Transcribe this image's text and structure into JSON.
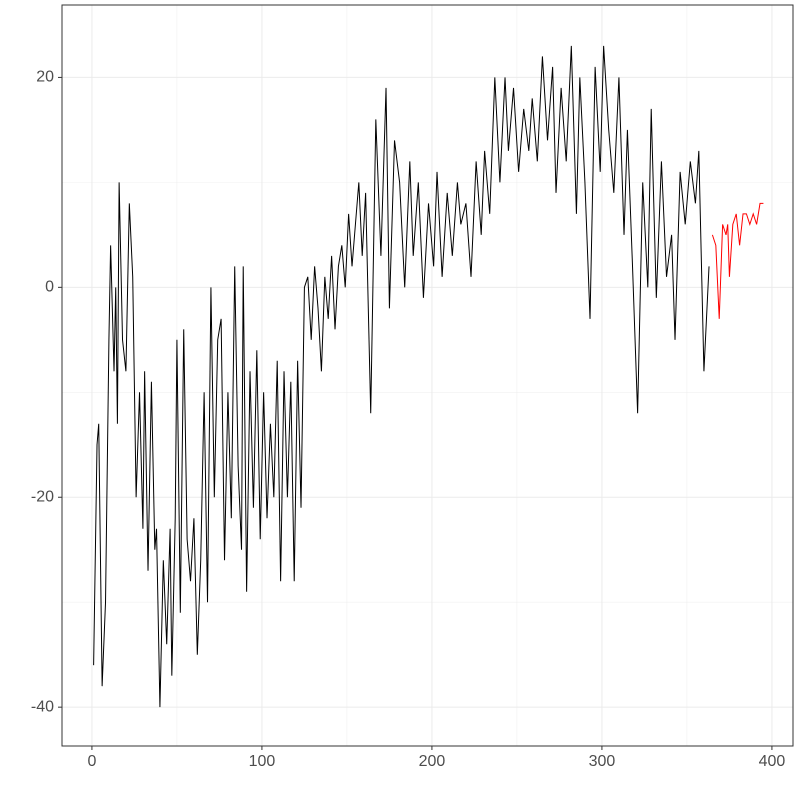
{
  "chart_data": {
    "type": "line",
    "xlim": [
      -17.6,
      412.4
    ],
    "ylim": [
      -43.7,
      26.9
    ],
    "xticks": [
      0,
      100,
      200,
      300,
      400
    ],
    "yticks": [
      -40,
      -20,
      0,
      20
    ],
    "x_minor_ticks": [
      50,
      150,
      250,
      350
    ],
    "y_minor_ticks": [
      -30,
      -10,
      10
    ],
    "grid": true,
    "series": [
      {
        "color": "#000000",
        "x": [
          1,
          3,
          4,
          6,
          8,
          10,
          11,
          13,
          14,
          15,
          16,
          18,
          20,
          22,
          24,
          26,
          28,
          30,
          31,
          33,
          35,
          37,
          38,
          40,
          42,
          44,
          46,
          47,
          49,
          50,
          52,
          54,
          56,
          58,
          60,
          62,
          64,
          66,
          68,
          70,
          72,
          74,
          76,
          78,
          80,
          82,
          84,
          86,
          88,
          89,
          91,
          93,
          95,
          97,
          99,
          101,
          103,
          105,
          107,
          109,
          111,
          113,
          115,
          117,
          119,
          121,
          123,
          125,
          127,
          129,
          131,
          133,
          135,
          137,
          139,
          141,
          143,
          145,
          147,
          149,
          151,
          153,
          155,
          157,
          159,
          161,
          164,
          167,
          170,
          173,
          175,
          178,
          181,
          184,
          187,
          189,
          192,
          195,
          198,
          201,
          203,
          206,
          209,
          212,
          215,
          217,
          220,
          223,
          226,
          229,
          231,
          234,
          237,
          240,
          243,
          245,
          248,
          251,
          254,
          257,
          259,
          262,
          265,
          268,
          271,
          273,
          276,
          279,
          282,
          285,
          287,
          290,
          293,
          296,
          299,
          301,
          304,
          307,
          310,
          313,
          315,
          318,
          321,
          324,
          327,
          329,
          332,
          335,
          338,
          341,
          343,
          346,
          349,
          352,
          355,
          357,
          360,
          363
        ],
        "values": [
          -36,
          -15,
          -13,
          -38,
          -30,
          -5,
          4,
          -8,
          0,
          -13,
          10,
          -5,
          -8,
          8,
          1,
          -20,
          -10,
          -23,
          -8,
          -27,
          -9,
          -25,
          -23,
          -40,
          -26,
          -34,
          -23,
          -37,
          -22,
          -5,
          -31,
          -4,
          -24,
          -28,
          -22,
          -35,
          -26,
          -10,
          -30,
          0,
          -20,
          -5,
          -3,
          -26,
          -10,
          -22,
          2,
          -17,
          -25,
          2,
          -29,
          -8,
          -21,
          -6,
          -24,
          -10,
          -22,
          -13,
          -20,
          -7,
          -28,
          -8,
          -20,
          -9,
          -28,
          -7,
          -21,
          0,
          1,
          -5,
          2,
          -2,
          -8,
          1,
          -3,
          3,
          -4,
          2,
          4,
          0,
          7,
          2,
          6,
          10,
          3,
          9,
          -12,
          16,
          3,
          19,
          -2,
          14,
          10,
          0,
          12,
          3,
          10,
          -1,
          8,
          2,
          11,
          1,
          9,
          3,
          10,
          6,
          8,
          1,
          12,
          5,
          13,
          7,
          20,
          10,
          20,
          13,
          19,
          11,
          17,
          13,
          18,
          12,
          22,
          14,
          21,
          9,
          19,
          12,
          23,
          7,
          20,
          10,
          -3,
          21,
          11,
          23,
          15,
          9,
          20,
          5,
          15,
          2,
          -12,
          10,
          0,
          17,
          -1,
          12,
          1,
          5,
          -5,
          11,
          6,
          12,
          8,
          13,
          -8,
          2
        ]
      },
      {
        "color": "#ff0000",
        "x": [
          365,
          367,
          369,
          371,
          373,
          374,
          375,
          377,
          379,
          381,
          383,
          385,
          387,
          389,
          391,
          393,
          395
        ],
        "values": [
          5,
          4,
          -3,
          6,
          5,
          6,
          1,
          6,
          7,
          4,
          7,
          7,
          6,
          7,
          6,
          8,
          8
        ]
      }
    ]
  }
}
